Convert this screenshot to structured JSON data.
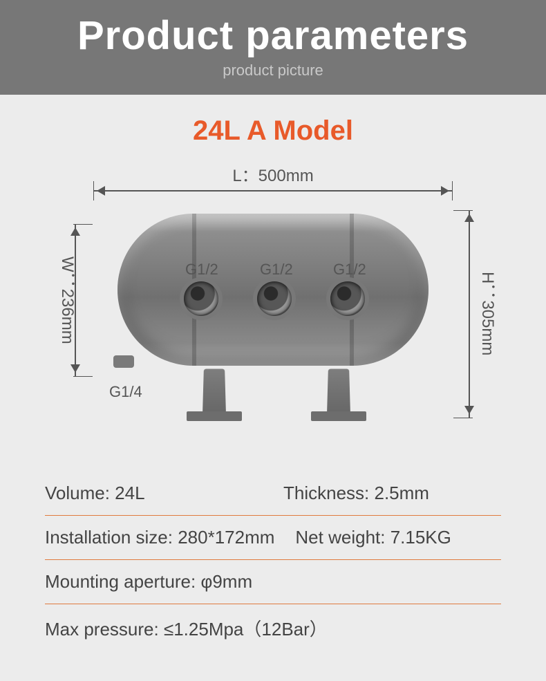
{
  "header": {
    "title": "Product parameters",
    "subtitle": "product picture"
  },
  "model": "24L A Model",
  "dimensions": {
    "length": "L：500mm",
    "width": "W：236mm",
    "height": "H：305mm"
  },
  "ports": {
    "top": [
      "G1/2",
      "G1/2",
      "G1/2"
    ],
    "drain": "G1/4"
  },
  "specs": {
    "volume": "Volume: 24L",
    "thickness": "Thickness: 2.5mm",
    "install_size": "Installation size: 280*172mm",
    "net_weight": "Net weight: 7.15KG",
    "mounting_aperture": "Mounting aperture: φ9mm",
    "max_pressure": "Max pressure: ≤1.25Mpa（12Bar）"
  },
  "colors": {
    "header_bg": "#777777",
    "page_bg": "#ececec",
    "accent": "#e85a2a",
    "divider": "#e07a3e",
    "text": "#555555",
    "tank_gray": "#7e7e7e"
  }
}
